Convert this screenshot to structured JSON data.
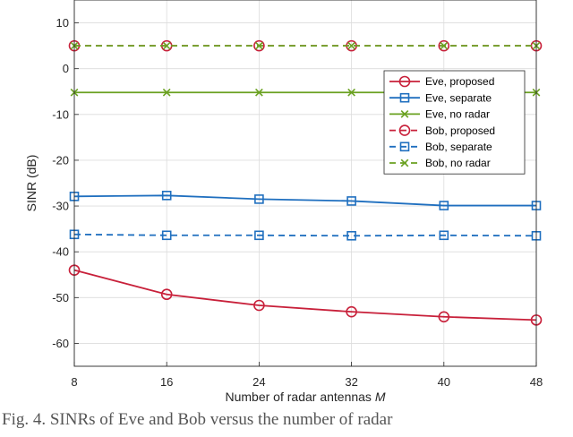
{
  "chart_data": {
    "type": "line",
    "title": "",
    "xlabel": "Number of radar antennas M",
    "xlabel_main": "Number of radar antennas",
    "xlabel_var": "M",
    "ylabel": "SINR (dB)",
    "x": [
      8,
      16,
      24,
      32,
      40,
      48
    ],
    "xlim": [
      8,
      48
    ],
    "ylim": [
      -65,
      15
    ],
    "xticks": [
      8,
      16,
      24,
      32,
      40,
      48
    ],
    "yticks": [
      -60,
      -50,
      -40,
      -30,
      -20,
      -10,
      0,
      10
    ],
    "grid": true,
    "legend_position": "top-right",
    "series": [
      {
        "name": "Eve, proposed",
        "values": [
          -44.0,
          -49.3,
          -51.7,
          -53.1,
          -54.2,
          -54.9
        ],
        "color": "#c8203a",
        "dash": "solid",
        "marker": "circle"
      },
      {
        "name": "Eve, separate",
        "values": [
          -27.9,
          -27.7,
          -28.5,
          -28.9,
          -29.9,
          -29.9
        ],
        "color": "#1f6fbf",
        "dash": "solid",
        "marker": "square"
      },
      {
        "name": "Eve, no radar",
        "values": [
          -5.2,
          -5.2,
          -5.2,
          -5.2,
          -5.2,
          -5.2
        ],
        "color": "#6aa121",
        "dash": "solid",
        "marker": "x"
      },
      {
        "name": "Bob, proposed",
        "values": [
          5.0,
          5.0,
          5.0,
          5.0,
          5.0,
          5.0
        ],
        "color": "#c8203a",
        "dash": "dashed",
        "marker": "circle"
      },
      {
        "name": "Bob, separate",
        "values": [
          -36.2,
          -36.4,
          -36.4,
          -36.5,
          -36.4,
          -36.5
        ],
        "color": "#1f6fbf",
        "dash": "dashed",
        "marker": "square"
      },
      {
        "name": "Bob, no radar",
        "values": [
          5.0,
          5.0,
          5.0,
          5.0,
          5.0,
          5.0
        ],
        "color": "#6aa121",
        "dash": "dashed",
        "marker": "x"
      }
    ]
  },
  "caption": {
    "text": "Fig. 4.  SINRs of Eve and Bob versus the number of radar"
  }
}
